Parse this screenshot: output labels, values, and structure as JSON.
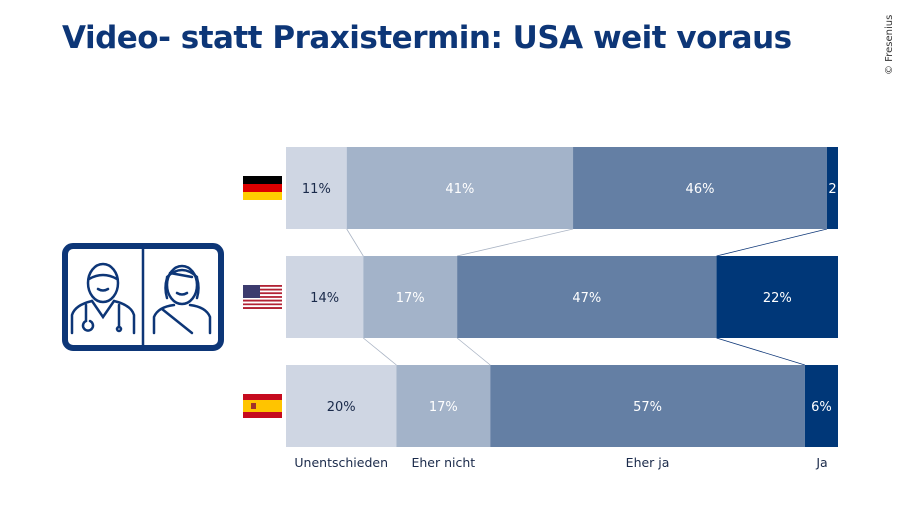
{
  "title": "Video- statt Praxistermin: USA weit voraus",
  "credit": "© Fresenius",
  "chart_data": {
    "type": "bar",
    "orientation": "horizontal-stacked-100",
    "categories": [
      "Deutschland",
      "USA",
      "Spanien"
    ],
    "category_icons": [
      "flag-germany-icon",
      "flag-usa-icon",
      "flag-spain-icon"
    ],
    "series": [
      {
        "name": "Unentschieden",
        "values": [
          11,
          14,
          20
        ],
        "color": "#cfd6e3",
        "label_color": "#1a2a4a"
      },
      {
        "name": "Eher nicht",
        "values": [
          41,
          17,
          17
        ],
        "color": "#a3b3c9",
        "label_color": "#ffffff"
      },
      {
        "name": "Eher ja",
        "values": [
          46,
          47,
          57
        ],
        "color": "#647fa4",
        "label_color": "#ffffff"
      },
      {
        "name": "Ja",
        "values": [
          2,
          22,
          6
        ],
        "color": "#003778",
        "label_color": "#ffffff"
      }
    ],
    "data_labels": [
      [
        "11%",
        "41%",
        "46%",
        "2"
      ],
      [
        "14%",
        "17%",
        "47%",
        "22%"
      ],
      [
        "20%",
        "17%",
        "57%",
        "6%"
      ]
    ],
    "xlim": [
      0,
      100
    ],
    "legend": "bottom"
  }
}
